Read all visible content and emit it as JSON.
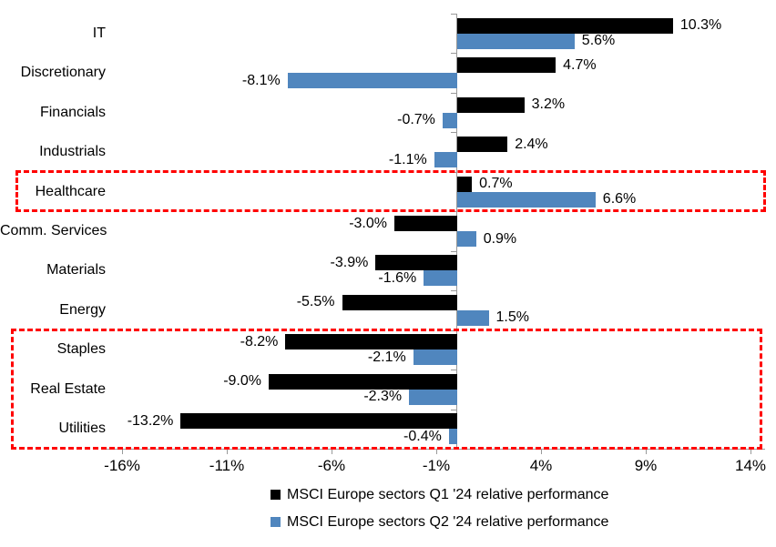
{
  "chart_data": {
    "type": "bar",
    "orientation": "horizontal",
    "title": "",
    "categories": [
      "IT",
      "Discretionary",
      "Financials",
      "Industrials",
      "Healthcare",
      "Comm. Services",
      "Materials",
      "Energy",
      "Staples",
      "Real Estate",
      "Utilities"
    ],
    "series": [
      {
        "name": "MSCI Europe sectors Q1 '24 relative performance",
        "color": "#000000",
        "values": [
          10.3,
          4.7,
          3.2,
          2.4,
          0.7,
          -3.0,
          -3.9,
          -5.5,
          -8.2,
          -9.0,
          -13.2
        ],
        "labels": [
          "10.3%",
          "4.7%",
          "3.2%",
          "2.4%",
          "0.7%",
          "-3.0%",
          "-3.9%",
          "-5.5%",
          "-8.2%",
          "-9.0%",
          "-13.2%"
        ]
      },
      {
        "name": "MSCI Europe sectors Q2 '24 relative performance",
        "color": "#5086BE",
        "values": [
          5.6,
          -8.1,
          -0.7,
          -1.1,
          6.6,
          0.9,
          -1.6,
          1.5,
          -2.1,
          -2.3,
          -0.4
        ],
        "labels": [
          "5.6%",
          "-8.1%",
          "-0.7%",
          "-1.1%",
          "6.6%",
          "0.9%",
          "-1.6%",
          "1.5%",
          "-2.1%",
          "-2.3%",
          "-0.4%"
        ]
      }
    ],
    "x_axis": {
      "ticks": [
        "-16%",
        "-11%",
        "-6%",
        "-1%",
        "4%",
        "9%",
        "14%"
      ],
      "tick_values": [
        -16,
        -11,
        -6,
        -1,
        4,
        9,
        14
      ],
      "unit": "%"
    },
    "grid": "off",
    "legend_position": "bottom",
    "axis_color": "#999999",
    "highlight_color": "#FF0000",
    "highlights": [
      {
        "rows": [
          4,
          4
        ],
        "categories": [
          "Healthcare"
        ]
      },
      {
        "rows": [
          8,
          10
        ],
        "categories": [
          "Staples",
          "Real Estate",
          "Utilities"
        ]
      }
    ]
  }
}
